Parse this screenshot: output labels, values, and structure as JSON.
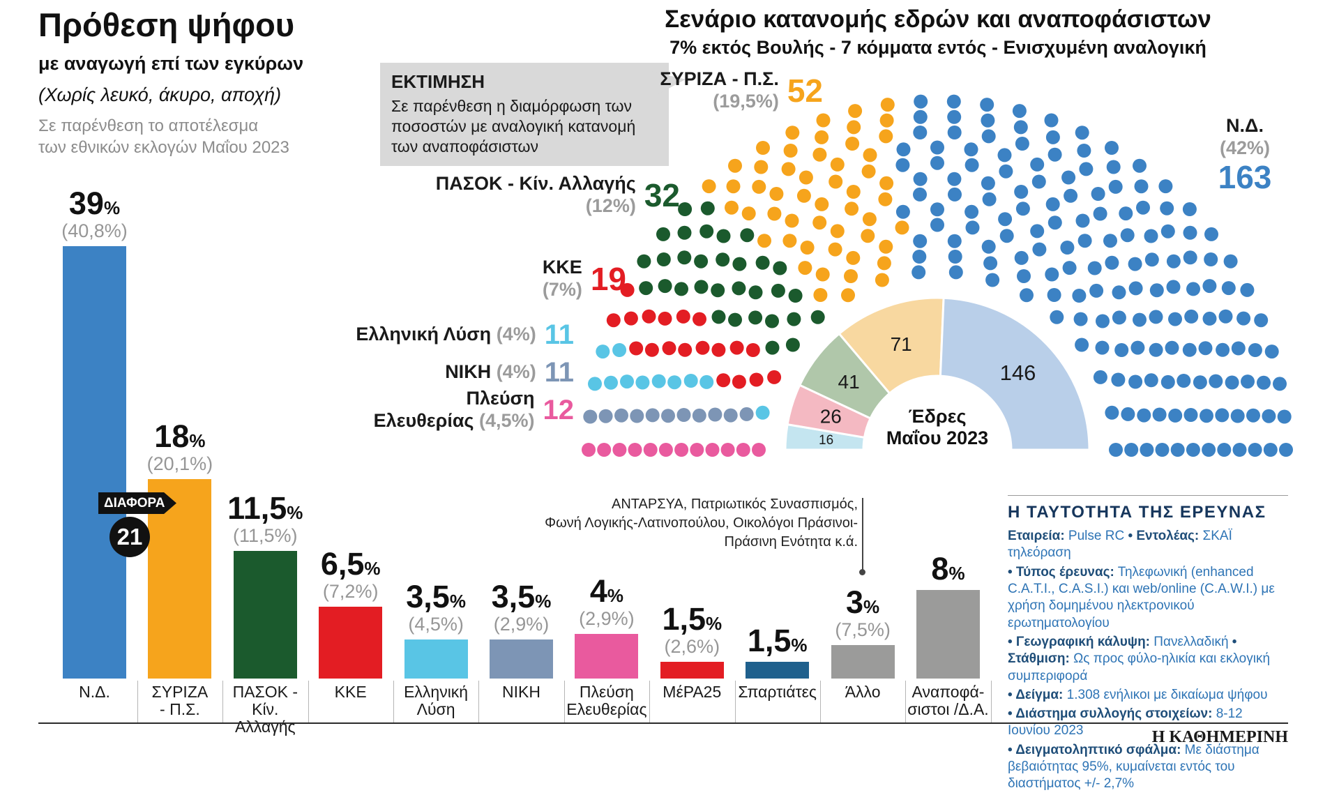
{
  "left_header": {
    "title": "Πρόθεση ψήφου",
    "subtitle": "με αναγωγή επί των εγκύρων",
    "note_paren": "(Χωρίς λευκό, άκυρο, αποχή)",
    "note_gray": "Σε παρένθεση το αποτέλεσμα των εθνικών εκλογών Μαΐου 2023"
  },
  "right_header": {
    "title": "Σενάριο κατανομής εδρών και αναποφάσιστων",
    "subtitle": "7% εκτός Βουλής - 7 κόμματα εντός - Ενισχυμένη αναλογική"
  },
  "estimate_box": {
    "title": "ΕΚΤΙΜΗΣΗ",
    "text": "Σε παρένθεση η διαμόρφωση των ποσοστών με αναλογική κατανομή των αναποφάσιστων"
  },
  "diff_badge": {
    "label": "ΔΙΑΦΟΡΑ",
    "value": "21"
  },
  "bar_chart": {
    "pct_sign": "%",
    "bars": [
      {
        "label_lines": [
          "Ν.Δ."
        ],
        "num": "39",
        "prev": "(40,8%)",
        "value": 39,
        "color": "#3c82c4"
      },
      {
        "label_lines": [
          "ΣΥΡΙΖΑ",
          "- Π.Σ."
        ],
        "num": "18",
        "prev": "(20,1%)",
        "value": 18,
        "color": "#f6a41c"
      },
      {
        "label_lines": [
          "ΠΑΣΟΚ -",
          "Κίν. Αλλαγής"
        ],
        "num": "11,5",
        "prev": "(11,5%)",
        "value": 11.5,
        "color": "#1b5a2d"
      },
      {
        "label_lines": [
          "ΚΚΕ"
        ],
        "num": "6,5",
        "prev": "(7,2%)",
        "value": 6.5,
        "color": "#e31d23"
      },
      {
        "label_lines": [
          "Ελληνική",
          "Λύση"
        ],
        "num": "3,5",
        "prev": "(4,5%)",
        "value": 3.5,
        "color": "#59c5e5"
      },
      {
        "label_lines": [
          "ΝΙΚΗ"
        ],
        "num": "3,5",
        "prev": "(2,9%)",
        "value": 3.5,
        "color": "#7d95b5"
      },
      {
        "label_lines": [
          "Πλεύση",
          "Ελευθερίας"
        ],
        "num": "4",
        "prev": "(2,9%)",
        "value": 4,
        "color": "#e95a9e"
      },
      {
        "label_lines": [
          "ΜέΡΑ25"
        ],
        "num": "1,5",
        "prev": "(2,6%)",
        "value": 1.5,
        "color": "#e31d23"
      },
      {
        "label_lines": [
          "Σπαρτιάτες"
        ],
        "num": "1,5",
        "prev": "",
        "value": 1.5,
        "color": "#1f608d"
      },
      {
        "label_lines": [
          "Άλλο"
        ],
        "num": "3",
        "prev": "(7,5%)",
        "value": 3,
        "color": "#9b9b9a"
      },
      {
        "label_lines": [
          "Αναποφά-",
          "σιστοι /Δ.Α."
        ],
        "num": "8",
        "prev": "",
        "value": 8,
        "color": "#9b9b9a"
      }
    ]
  },
  "hemicycle": {
    "total_seats": 300,
    "parties": [
      {
        "name": "Πλεύση Ελευθερίας",
        "pct": "(4,5%)",
        "seats": 12,
        "color": "#e95a9e",
        "label_lines": [
          "Πλεύση",
          "Ελευθερίας (4,5%)"
        ]
      },
      {
        "name": "ΝΙΚΗ",
        "pct": "(4%)",
        "seats": 11,
        "color": "#7d95b5",
        "label_lines": [
          "ΝΙΚΗ (4%)"
        ]
      },
      {
        "name": "Ελληνική Λύση",
        "pct": "(4%)",
        "seats": 11,
        "color": "#59c5e5",
        "label_lines": [
          "Ελληνική Λύση (4%)"
        ]
      },
      {
        "name": "ΚΚΕ",
        "pct": "(7%)",
        "seats": 19,
        "color": "#e31d23",
        "label_lines": [
          "ΚΚΕ",
          "(7%)"
        ]
      },
      {
        "name": "ΠΑΣΟΚ - Κίν. Αλλαγής",
        "pct": "(12%)",
        "seats": 32,
        "color": "#1b5a2d",
        "label_lines": [
          "ΠΑΣΟΚ - Κίν. Αλλαγής",
          "(12%)"
        ]
      },
      {
        "name": "ΣΥΡΙΖΑ - Π.Σ.",
        "pct": "(19,5%)",
        "seats": 52,
        "color": "#f6a41c",
        "label_lines": [
          "ΣΥΡΙΖΑ - Π.Σ.",
          "(19,5%)"
        ]
      },
      {
        "name": "Ν.Δ.",
        "pct": "(42%)",
        "seats": 163,
        "color": "#3c82c4",
        "label_lines": [
          "Ν.Δ.",
          "(42%)"
        ]
      }
    ],
    "inner_donut": {
      "center_label_lines": [
        "Έδρες",
        "Μαΐου 2023"
      ],
      "segments": [
        {
          "value": 16,
          "color": "#c4e5f0"
        },
        {
          "value": 26,
          "color": "#f4b9c2"
        },
        {
          "value": 41,
          "color": "#b0c7aa"
        },
        {
          "value": 71,
          "color": "#f8d8a0"
        },
        {
          "value": 146,
          "color": "#b9cfe9"
        }
      ]
    }
  },
  "annotation": {
    "lines": [
      "ΑΝΤΑΡΣΥΑ, Πατριωτικός Συνασπισμός,",
      "Φωνή Λογικής-Λατινοπούλου, Οικολόγοι Πράσινοι-",
      "Πράσινη Ενότητα κ.ά."
    ]
  },
  "survey": {
    "title": "Η ΤΑΥΤΟΤΗΤΑ ΤΗΣ ΕΡΕΥΝΑΣ",
    "lines": [
      [
        {
          "b": "Εταιρεία:"
        },
        {
          "t": " Pulse RC "
        },
        {
          "b": "• Εντολέας:"
        },
        {
          "t": " ΣΚΑΪ τηλεόραση"
        }
      ],
      [
        {
          "b": "• Τύπος έρευνας:"
        },
        {
          "t": " Τηλεφωνική (enhanced C.A.T.I., C.A.S.I.) και web/online (C.A.W.I.) με χρήση δομημένου ηλεκτρονικού ερωτηματολογίου"
        }
      ],
      [
        {
          "b": "• Γεωγραφική κάλυψη:"
        },
        {
          "t": " Πανελλαδική "
        },
        {
          "b": "• Στάθμιση:"
        },
        {
          "t": " Ως προς φύλο-ηλικία και εκλογική συμπεριφορά"
        }
      ],
      [
        {
          "b": "• Δείγμα:"
        },
        {
          "t": " 1.308 ενήλικοι με δικαίωμα ψήφου"
        }
      ],
      [
        {
          "b": "• Διάστημα συλλογής στοιχείων:"
        },
        {
          "t": " 8-12 Ιουνίου 2023"
        }
      ],
      [
        {
          "b": "• Δειγματοληπτικό σφάλμα:"
        },
        {
          "t": " Με διάστημα βεβαιότητας 95%, κυμαίνεται εντός του διαστήματος +/- 2,7%"
        }
      ]
    ]
  },
  "footer": {
    "logo": "Η ΚΑΘΗΜΕΡΙΝΗ"
  },
  "chart_data": [
    {
      "type": "bar",
      "title": "Πρόθεση ψήφου με αναγωγή επί των εγκύρων",
      "subtitle": "(Χωρίς λευκό, άκυρο, αποχή) - Σε παρένθεση το αποτέλεσμα των εθνικών εκλογών Μαΐου 2023",
      "categories": [
        "Ν.Δ.",
        "ΣΥΡΙΖΑ - Π.Σ.",
        "ΠΑΣΟΚ - Κίν. Αλλαγής",
        "ΚΚΕ",
        "Ελληνική Λύση",
        "ΝΙΚΗ",
        "Πλεύση Ελευθερίας",
        "ΜέΡΑ25",
        "Σπαρτιάτες",
        "Άλλο",
        "Αναποφάσιστοι /Δ.Α."
      ],
      "series": [
        {
          "name": "Πρόθεση ψήφου (%)",
          "values": [
            39,
            18,
            11.5,
            6.5,
            3.5,
            3.5,
            4,
            1.5,
            1.5,
            3,
            8
          ]
        },
        {
          "name": "Εκλογές Μαΐου 2023 (%, σε παρένθεση)",
          "values": [
            40.8,
            20.1,
            11.5,
            7.2,
            4.5,
            2.9,
            2.9,
            2.6,
            null,
            7.5,
            null
          ]
        }
      ],
      "ylim": [
        0,
        40
      ],
      "annotations": [
        "ΔΙΑΦΟΡΑ 21"
      ]
    },
    {
      "type": "pie",
      "variant": "hemicycle-parliament",
      "title": "Σενάριο κατανομής εδρών και αναποφάσιστων",
      "subtitle": "7% εκτός Βουλής - 7 κόμματα εντός - Ενισχυμένη αναλογική",
      "categories": [
        "Πλεύση Ελευθερίας",
        "ΝΙΚΗ",
        "Ελληνική Λύση",
        "ΚΚΕ",
        "ΠΑΣΟΚ - Κίν. Αλλαγής",
        "ΣΥΡΙΖΑ - Π.Σ.",
        "Ν.Δ."
      ],
      "values": [
        12,
        11,
        11,
        19,
        32,
        52,
        163
      ],
      "percent_labels": [
        "(4,5%)",
        "(4%)",
        "(4%)",
        "(7%)",
        "(12%)",
        "(19,5%)",
        "(42%)"
      ],
      "total": 300
    },
    {
      "type": "pie",
      "variant": "hemicycle-donut",
      "title": "Έδρες Μαΐου 2023",
      "order": "left-to-right",
      "values": [
        16,
        26,
        41,
        71,
        146
      ],
      "total": 300
    }
  ]
}
